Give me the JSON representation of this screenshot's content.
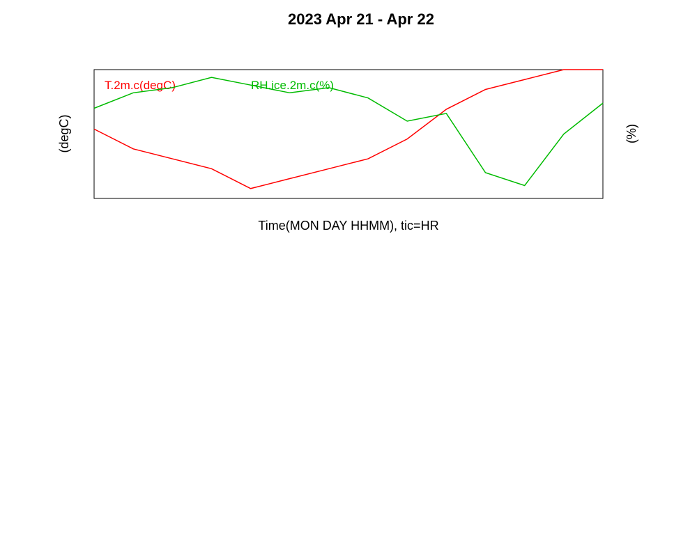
{
  "chart_data": {
    "type": "line",
    "title": "2023 Apr 21 - Apr 22",
    "xlabel": "Time(MON DAY HHMM), tic=HR",
    "ylabel_left": "(degC)",
    "ylabel_right": "(%)",
    "left_ticks": [
      "-16",
      "-12",
      "-8"
    ],
    "right_ticks": [
      "50",
      "70",
      "90"
    ],
    "series": [
      {
        "name": "T.2m.c(degC)",
        "color": "#ff0000",
        "x": [
          1,
          2,
          3,
          4,
          5,
          6,
          7,
          8,
          9,
          10,
          11,
          12,
          13,
          14
        ],
        "values": [
          -11,
          -13,
          -14,
          -15,
          -17,
          -16,
          -15,
          -14,
          -12,
          -9,
          -7,
          -6,
          -5,
          -5
        ]
      },
      {
        "name": "RH.ice.2m.c(%)",
        "color": "#00bb00",
        "x": [
          1,
          2,
          3,
          4,
          5,
          6,
          7,
          8,
          9,
          10,
          11,
          12,
          13,
          14
        ],
        "values": [
          80,
          86,
          88,
          92,
          89,
          86,
          88,
          84,
          75,
          78,
          55,
          50,
          70,
          82
        ]
      }
    ]
  }
}
